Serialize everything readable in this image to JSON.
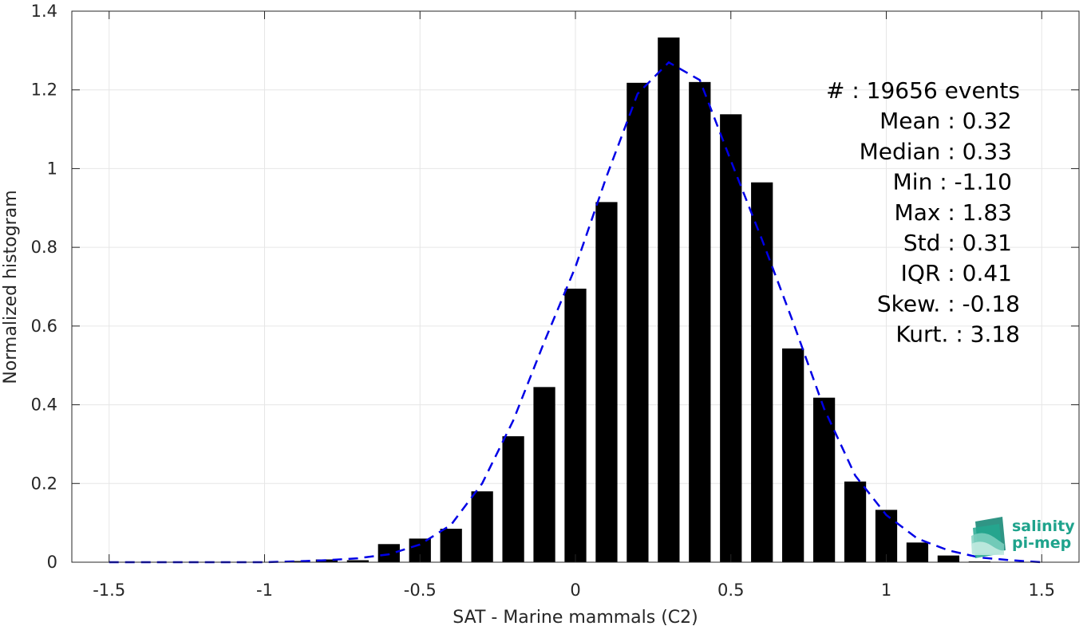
{
  "chart_data": {
    "type": "bar",
    "xlabel": "SAT - Marine mammals (C2)",
    "ylabel": "Normalized histogram",
    "xlim": [
      -1.62,
      1.62
    ],
    "ylim": [
      0,
      1.4
    ],
    "xticks": [
      -1.5,
      -1,
      -0.5,
      0,
      0.5,
      1,
      1.5
    ],
    "xtick_labels": [
      "-1.5",
      "-1",
      "-0.5",
      "0",
      "0.5",
      "1",
      "1.5"
    ],
    "yticks": [
      0,
      0.2,
      0.4,
      0.6,
      0.8,
      1,
      1.2,
      1.4
    ],
    "ytick_labels": [
      "0",
      "0.2",
      "0.4",
      "0.6",
      "0.8",
      "1",
      "1.2",
      "1.4"
    ],
    "grid": true,
    "bar_color": "#000000",
    "bin_width": 0.1,
    "bins": {
      "x": [
        -1.1,
        -1.0,
        -0.9,
        -0.8,
        -0.7,
        -0.6,
        -0.5,
        -0.4,
        -0.3,
        -0.2,
        -0.1,
        0.0,
        0.1,
        0.2,
        0.3,
        0.4,
        0.5,
        0.6,
        0.7,
        0.8,
        0.9,
        1.0,
        1.1,
        1.2,
        1.3,
        1.4,
        1.5
      ],
      "values": [
        0.001,
        0.001,
        0.003,
        0.007,
        0.005,
        0.046,
        0.06,
        0.085,
        0.18,
        0.32,
        0.445,
        0.695,
        0.915,
        1.218,
        1.333,
        1.22,
        1.138,
        0.965,
        0.543,
        0.418,
        0.205,
        0.133,
        0.05,
        0.017,
        0.002,
        0.001,
        0.001
      ]
    },
    "fit_curve": {
      "style": "dashed",
      "color": "#0000e6",
      "x": [
        -1.5,
        -1.4,
        -1.3,
        -1.2,
        -1.1,
        -1.0,
        -0.9,
        -0.8,
        -0.7,
        -0.6,
        -0.5,
        -0.4,
        -0.3,
        -0.2,
        -0.1,
        0.0,
        0.1,
        0.2,
        0.3,
        0.4,
        0.5,
        0.6,
        0.7,
        0.8,
        0.9,
        1.0,
        1.1,
        1.2,
        1.3,
        1.4,
        1.5
      ],
      "y": [
        0.0,
        0.0,
        0.0,
        0.0,
        0.0,
        0.0,
        0.002,
        0.005,
        0.01,
        0.02,
        0.045,
        0.095,
        0.2,
        0.36,
        0.56,
        0.75,
        0.98,
        1.19,
        1.27,
        1.225,
        1.02,
        0.82,
        0.61,
        0.39,
        0.22,
        0.12,
        0.06,
        0.03,
        0.012,
        0.005,
        0.0
      ]
    },
    "stats": [
      {
        "label": "#",
        "value": ": 19656 events"
      },
      {
        "label": "Mean",
        "value": ": 0.32"
      },
      {
        "label": "Median",
        "value": ": 0.33"
      },
      {
        "label": "Min",
        "value": ": -1.10"
      },
      {
        "label": "Max",
        "value": ": 1.83"
      },
      {
        "label": "Std",
        "value": ": 0.31"
      },
      {
        "label": "IQR",
        "value": ": 0.41"
      },
      {
        "label": "Skew.",
        "value": ": -0.18"
      },
      {
        "label": "Kurt.",
        "value": ": 3.18"
      }
    ]
  },
  "logo": {
    "line1": "salinity",
    "line2": "pi-mep",
    "color": "#1fa38c"
  }
}
